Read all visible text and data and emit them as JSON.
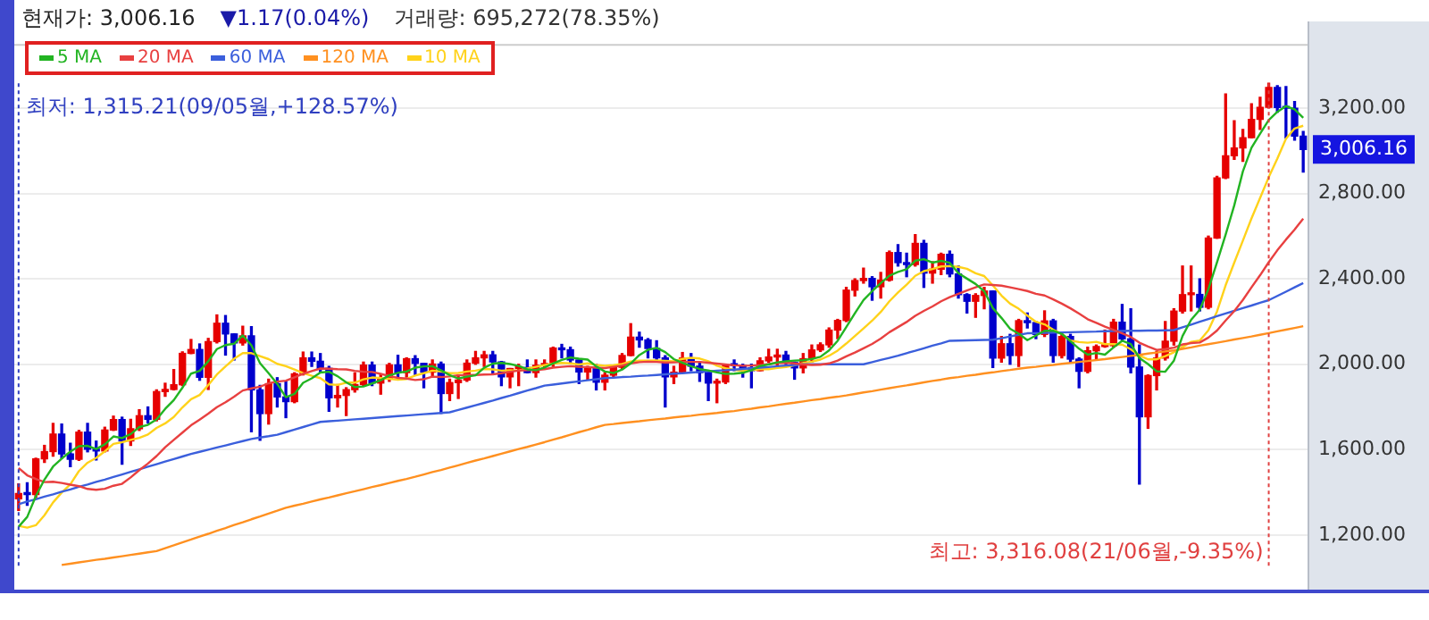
{
  "chart_data": {
    "type": "candlestick",
    "categories": [
      null,
      null,
      null,
      null,
      null,
      null,
      null,
      null,
      null,
      null,
      null,
      null,
      null,
      null,
      null,
      null,
      null,
      null,
      null,
      null,
      null,
      null,
      null,
      null,
      null,
      null,
      null,
      null,
      null,
      null,
      null,
      null,
      null,
      null,
      null,
      null,
      null,
      null,
      null,
      null,
      null,
      null,
      null,
      null,
      null,
      null,
      null,
      null,
      null,
      null,
      null,
      null,
      null,
      null,
      null,
      null,
      null,
      null,
      null,
      null,
      null,
      null,
      null,
      null,
      null,
      null,
      null,
      null,
      null,
      null,
      null,
      null,
      null,
      null,
      null,
      null,
      null,
      null,
      null,
      null,
      null,
      null,
      null,
      null,
      null,
      null,
      null,
      null,
      null,
      null,
      null,
      null,
      null,
      null,
      null,
      null,
      null,
      null,
      null,
      null,
      null,
      null,
      null,
      null,
      null,
      null,
      null,
      null,
      null,
      null,
      null,
      null,
      null,
      null,
      null,
      null,
      null,
      null,
      null,
      null,
      null,
      null,
      null,
      null,
      null,
      null,
      null,
      null,
      null,
      null,
      null,
      null,
      null,
      null,
      null,
      null,
      null,
      null,
      null,
      null,
      null,
      null,
      null,
      null,
      null,
      null,
      null,
      null,
      null,
      null
    ],
    "ohlc": [
      [
        1370,
        1440,
        1315.21,
        1395
      ],
      [
        1395,
        1445,
        1340,
        1390
      ],
      [
        1390,
        1560,
        1375,
        1557
      ],
      [
        1557,
        1620,
        1540,
        1591
      ],
      [
        1591,
        1723,
        1570,
        1673
      ],
      [
        1673,
        1720,
        1560,
        1580
      ],
      [
        1580,
        1630,
        1520,
        1555
      ],
      [
        1555,
        1690,
        1550,
        1682
      ],
      [
        1682,
        1723,
        1590,
        1602
      ],
      [
        1602,
        1640,
        1552,
        1594
      ],
      [
        1594,
        1705,
        1590,
        1692
      ],
      [
        1692,
        1757,
        1690,
        1741
      ],
      [
        1741,
        1752,
        1532,
        1641
      ],
      [
        1641,
        1742,
        1620,
        1698
      ],
      [
        1698,
        1787,
        1690,
        1759
      ],
      [
        1759,
        1800,
        1725,
        1742
      ],
      [
        1742,
        1880,
        1735,
        1872
      ],
      [
        1872,
        1911,
        1850,
        1882
      ],
      [
        1882,
        1975,
        1880,
        1904
      ],
      [
        1904,
        2058,
        1900,
        2051
      ],
      [
        2051,
        2116,
        2050,
        2069
      ],
      [
        2069,
        2095,
        1925,
        1939
      ],
      [
        1939,
        2121,
        1882,
        2106
      ],
      [
        2106,
        2231,
        2100,
        2192
      ],
      [
        2192,
        2228,
        2043,
        2142
      ],
      [
        2142,
        2142,
        2020,
        2100
      ],
      [
        2100,
        2178,
        2090,
        2133
      ],
      [
        2133,
        2176,
        1684,
        1880
      ],
      [
        1880,
        1901,
        1644,
        1769
      ],
      [
        1769,
        1930,
        1720,
        1909
      ],
      [
        1909,
        1937,
        1800,
        1847
      ],
      [
        1847,
        1920,
        1750,
        1825
      ],
      [
        1825,
        1960,
        1820,
        1955
      ],
      [
        1955,
        2057,
        1950,
        2030
      ],
      [
        2030,
        2057,
        1990,
        2014
      ],
      [
        2014,
        2050,
        1960,
        1981
      ],
      [
        1981,
        1990,
        1780,
        1843
      ],
      [
        1843,
        1905,
        1800,
        1854
      ],
      [
        1854,
        1890,
        1760,
        1881
      ],
      [
        1881,
        1960,
        1870,
        1905
      ],
      [
        1905,
        2010,
        1900,
        1996
      ],
      [
        1996,
        2010,
        1900,
        1912
      ],
      [
        1912,
        1950,
        1860,
        1932
      ],
      [
        1932,
        2004,
        1920,
        1997
      ],
      [
        1997,
        2042,
        1940,
        1961
      ],
      [
        1961,
        2030,
        1940,
        2026
      ],
      [
        2026,
        2040,
        1950,
        2004
      ],
      [
        2004,
        2004,
        1890,
        1963
      ],
      [
        1963,
        2020,
        1940,
        2001
      ],
      [
        2001,
        2010,
        1770,
        1863
      ],
      [
        1863,
        1930,
        1830,
        1914
      ],
      [
        1914,
        1950,
        1840,
        1926
      ],
      [
        1926,
        2020,
        1920,
        2005
      ],
      [
        2005,
        2060,
        2000,
        2030
      ],
      [
        2030,
        2060,
        1990,
        2044
      ],
      [
        2044,
        2060,
        1960,
        2011
      ],
      [
        2011,
        2013,
        1900,
        1941
      ],
      [
        1941,
        1980,
        1890,
        1980
      ],
      [
        1980,
        2000,
        1900,
        1985
      ],
      [
        1985,
        2020,
        1960,
        1961
      ],
      [
        1961,
        2020,
        1940,
        1995
      ],
      [
        1995,
        2020,
        1980,
        2002
      ],
      [
        2002,
        2080,
        1990,
        2076
      ],
      [
        2076,
        2093,
        2030,
        2068
      ],
      [
        2068,
        2080,
        2010,
        2020
      ],
      [
        2020,
        2020,
        1910,
        1964
      ],
      [
        1964,
        1990,
        1930,
        1981
      ],
      [
        1981,
        2000,
        1880,
        1916
      ],
      [
        1916,
        1960,
        1880,
        1949
      ],
      [
        1949,
        1990,
        1940,
        1986
      ],
      [
        1986,
        2050,
        1980,
        2041
      ],
      [
        2041,
        2190,
        2040,
        2127
      ],
      [
        2127,
        2150,
        2080,
        2114
      ],
      [
        2114,
        2120,
        2030,
        2074
      ],
      [
        2074,
        2110,
        2010,
        2030
      ],
      [
        2030,
        2040,
        1800,
        1941
      ],
      [
        1941,
        1990,
        1910,
        1963
      ],
      [
        1963,
        2055,
        1960,
        2029
      ],
      [
        2029,
        2050,
        1970,
        1991
      ],
      [
        1991,
        2010,
        1920,
        1961
      ],
      [
        1961,
        1970,
        1830,
        1912
      ],
      [
        1912,
        1930,
        1820,
        1917
      ],
      [
        1917,
        2000,
        1910,
        1996
      ],
      [
        1996,
        2020,
        1970,
        1994
      ],
      [
        1994,
        2000,
        1940,
        1983
      ],
      [
        1983,
        2000,
        1890,
        1970
      ],
      [
        1970,
        2030,
        1970,
        2016
      ],
      [
        2016,
        2070,
        2010,
        2034
      ],
      [
        2034,
        2070,
        1990,
        2043
      ],
      [
        2043,
        2060,
        2000,
        2008
      ],
      [
        2008,
        2010,
        1930,
        1983
      ],
      [
        1983,
        2050,
        1960,
        2026
      ],
      [
        2026,
        2090,
        2010,
        2067
      ],
      [
        2067,
        2100,
        2060,
        2091
      ],
      [
        2091,
        2170,
        2080,
        2160
      ],
      [
        2160,
        2210,
        2120,
        2205
      ],
      [
        2205,
        2360,
        2200,
        2347
      ],
      [
        2347,
        2400,
        2320,
        2392
      ],
      [
        2392,
        2450,
        2380,
        2402
      ],
      [
        2402,
        2410,
        2300,
        2363
      ],
      [
        2363,
        2430,
        2310,
        2394
      ],
      [
        2394,
        2530,
        2390,
        2523
      ],
      [
        2523,
        2560,
        2460,
        2476
      ],
      [
        2476,
        2520,
        2410,
        2467
      ],
      [
        2467,
        2607,
        2460,
        2566
      ],
      [
        2566,
        2580,
        2360,
        2427
      ],
      [
        2427,
        2480,
        2380,
        2445
      ],
      [
        2445,
        2520,
        2420,
        2515
      ],
      [
        2515,
        2530,
        2410,
        2423
      ],
      [
        2423,
        2460,
        2310,
        2326
      ],
      [
        2326,
        2330,
        2240,
        2295
      ],
      [
        2295,
        2330,
        2220,
        2322
      ],
      [
        2322,
        2360,
        2260,
        2343
      ],
      [
        2343,
        2343,
        1985,
        2029
      ],
      [
        2029,
        2130,
        2010,
        2096
      ],
      [
        2096,
        2140,
        2000,
        2041
      ],
      [
        2041,
        2210,
        1990,
        2204
      ],
      [
        2204,
        2240,
        2170,
        2195
      ],
      [
        2195,
        2200,
        2120,
        2140
      ],
      [
        2140,
        2250,
        2130,
        2203
      ],
      [
        2203,
        2210,
        2010,
        2041
      ],
      [
        2041,
        2150,
        2030,
        2130
      ],
      [
        2130,
        2140,
        2010,
        2024
      ],
      [
        2024,
        2030,
        1890,
        1967
      ],
      [
        1967,
        2080,
        1960,
        2063
      ],
      [
        2063,
        2090,
        2020,
        2083
      ],
      [
        2083,
        2160,
        2080,
        2087
      ],
      [
        2087,
        2210,
        2080,
        2197
      ],
      [
        2197,
        2280,
        2110,
        2119
      ],
      [
        2119,
        2260,
        1960,
        1987
      ],
      [
        1987,
        2090,
        1439,
        1754
      ],
      [
        1754,
        1950,
        1700,
        1947
      ],
      [
        1947,
        2060,
        1880,
        2029
      ],
      [
        2029,
        2200,
        2020,
        2108
      ],
      [
        2108,
        2260,
        2090,
        2249
      ],
      [
        2249,
        2460,
        2240,
        2326
      ],
      [
        2326,
        2460,
        2250,
        2327
      ],
      [
        2327,
        2400,
        2250,
        2267
      ],
      [
        2267,
        2600,
        2260,
        2591
      ],
      [
        2591,
        2880,
        2590,
        2873
      ],
      [
        2873,
        3266,
        2870,
        2976
      ],
      [
        2976,
        3140,
        2960,
        3013
      ],
      [
        3013,
        3100,
        2950,
        3061
      ],
      [
        3061,
        3220,
        3060,
        3147
      ],
      [
        3147,
        3250,
        3100,
        3203
      ],
      [
        3203,
        3316.08,
        3200,
        3296
      ],
      [
        3296,
        3305,
        3180,
        3202
      ],
      [
        3202,
        3300,
        3060,
        3199
      ],
      [
        3199,
        3230,
        3050,
        3068
      ],
      [
        3068,
        3090,
        2900,
        3006.16
      ]
    ],
    "colors": [
      "#e60000",
      "#0000cc",
      "#e60000",
      "#e60000",
      "#e60000",
      "#0000cc",
      "#0000cc",
      "#e60000",
      "#0000cc",
      "#0000cc",
      "#e60000",
      "#e60000",
      "#0000cc",
      "#e60000",
      "#e60000",
      "#0000cc",
      "#e60000",
      "#e60000",
      "#e60000",
      "#e60000",
      "#e60000",
      "#0000cc",
      "#e60000",
      "#e60000",
      "#0000cc",
      "#0000cc",
      "#e60000",
      "#0000cc",
      "#0000cc",
      "#e60000",
      "#0000cc",
      "#0000cc",
      "#e60000",
      "#e60000",
      "#0000cc",
      "#0000cc",
      "#0000cc",
      "#e60000",
      "#e60000",
      "#e60000",
      "#e60000",
      "#0000cc",
      "#e60000",
      "#e60000",
      "#0000cc",
      "#e60000",
      "#0000cc",
      "#0000cc",
      "#e60000",
      "#0000cc",
      "#e60000",
      "#e60000",
      "#e60000",
      "#e60000",
      "#e60000",
      "#0000cc",
      "#0000cc",
      "#e60000",
      "#e60000",
      "#0000cc",
      "#e60000",
      "#e60000",
      "#e60000",
      "#0000cc",
      "#0000cc",
      "#0000cc",
      "#e60000",
      "#0000cc",
      "#e60000",
      "#e60000",
      "#e60000",
      "#e60000",
      "#0000cc",
      "#0000cc",
      "#0000cc",
      "#0000cc",
      "#e60000",
      "#e60000",
      "#0000cc",
      "#0000cc",
      "#0000cc",
      "#e60000",
      "#e60000",
      "#0000cc",
      "#0000cc",
      "#0000cc",
      "#e60000",
      "#e60000",
      "#e60000",
      "#0000cc",
      "#0000cc",
      "#e60000",
      "#e60000",
      "#e60000",
      "#e60000",
      "#e60000",
      "#e60000",
      "#e60000",
      "#e60000",
      "#0000cc",
      "#e60000",
      "#e60000",
      "#0000cc",
      "#0000cc",
      "#e60000",
      "#0000cc",
      "#e60000",
      "#e60000",
      "#0000cc",
      "#0000cc",
      "#0000cc",
      "#e60000",
      "#e60000",
      "#0000cc",
      "#e60000",
      "#0000cc",
      "#e60000",
      "#0000cc",
      "#0000cc",
      "#e60000",
      "#0000cc",
      "#e60000",
      "#0000cc",
      "#0000cc",
      "#e60000",
      "#e60000",
      "#e60000",
      "#e60000",
      "#0000cc",
      "#0000cc",
      "#0000cc",
      "#e60000",
      "#e60000",
      "#e60000",
      "#e60000",
      "#e60000",
      "#e60000",
      "#0000cc",
      "#e60000",
      "#e60000",
      "#e60000",
      "#e60000",
      "#e60000",
      "#e60000",
      "#e60000",
      "#e60000",
      "#0000cc",
      "#0000cc",
      "#0000cc",
      "#0000cc"
    ],
    "series": [
      {
        "name": "5 MA",
        "type": "line",
        "color": "#22b422",
        "values": [
          1239,
          1285,
          1383,
          1460,
          1521,
          1558,
          1591,
          1616,
          1618,
          1603,
          1625,
          1662,
          1654,
          1673,
          1706,
          1716,
          1742,
          1791,
          1832,
          1890,
          1956,
          1969,
          2014,
          2071,
          2090,
          2096,
          2135,
          2089,
          2005,
          1958,
          1908,
          1846,
          1861,
          1913,
          1934,
          1961,
          1965,
          1944,
          1915,
          1893,
          1896,
          1910,
          1925,
          1948,
          1960,
          1966,
          1984,
          1990,
          1991,
          1971,
          1949,
          1933,
          1942,
          1948,
          1984,
          2003,
          2006,
          2001,
          1992,
          1976,
          1972,
          1985,
          2004,
          2020,
          2032,
          2026,
          2022,
          1990,
          1966,
          1959,
          1975,
          2004,
          2043,
          2068,
          2077,
          2057,
          2024,
          2007,
          1991,
          1977,
          1971,
          1962,
          1955,
          1956,
          1960,
          1972,
          1992,
          1999,
          2009,
          2014,
          2017,
          2019,
          2025,
          2035,
          2065,
          2110,
          2174,
          2239,
          2301,
          2342,
          2380,
          2415,
          2432,
          2445,
          2485,
          2492,
          2476,
          2484,
          2475,
          2427,
          2401,
          2376,
          2342,
          2263,
          2217,
          2166,
          2143,
          2113,
          2135,
          2157,
          2157,
          2142,
          2108,
          2073,
          2045,
          2053,
          2045,
          2079,
          2110,
          2095,
          2029,
          2001,
          1967,
          1965,
          2017,
          2132,
          2208,
          2255,
          2352,
          2477,
          2607,
          2744,
          2903,
          3014,
          3080,
          3144,
          3182,
          3209,
          3194,
          3154
        ]
      },
      {
        "name": "20 MA",
        "type": "line",
        "color": "#e84040",
        "values": [
          1514,
          1480,
          1463,
          1448,
          1450,
          1444,
          1436,
          1429,
          1416,
          1412,
          1417,
          1431,
          1440,
          1470,
          1504,
          1535,
          1570,
          1611,
          1646,
          1680,
          1714,
          1741,
          1769,
          1799,
          1822,
          1848,
          1877,
          1887,
          1895,
          1911,
          1919,
          1923,
          1939,
          1955,
          1968,
          1980,
          1979,
          1977,
          1976,
          1969,
          1965,
          1964,
          1955,
          1945,
          1936,
          1933,
          1926,
          1930,
          1942,
          1940,
          1943,
          1948,
          1950,
          1950,
          1952,
          1953,
          1958,
          1965,
          1970,
          1973,
          1973,
          1977,
          1984,
          1988,
          1991,
          1988,
          1987,
          1984,
          1982,
          1988,
          1994,
          2004,
          2010,
          2012,
          2011,
          2008,
          2009,
          2011,
          2011,
          2011,
          2007,
          2003,
          1999,
          1995,
          1993,
          1994,
          1996,
          2001,
          2006,
          2007,
          2004,
          1999,
          1997,
          1998,
          2004,
          2017,
          2037,
          2055,
          2075,
          2095,
          2120,
          2150,
          2174,
          2198,
          2227,
          2250,
          2271,
          2295,
          2314,
          2330,
          2346,
          2360,
          2374,
          2371,
          2368,
          2360,
          2352,
          2343,
          2330,
          2322,
          2304,
          2284,
          2262,
          2237,
          2211,
          2194,
          2176,
          2160,
          2145,
          2128,
          2101,
          2083,
          2067,
          2071,
          2078,
          2093,
          2099,
          2102,
          2125,
          2158,
          2205,
          2249,
          2301,
          2360,
          2417,
          2478,
          2534,
          2584,
          2631,
          2682
        ]
      },
      {
        "name": "60 MA",
        "type": "line",
        "color": "#3b5fdc",
        "values": [
          1345,
          1357,
          1368,
          1380,
          1391,
          1403,
          1414,
          1426,
          1437,
          1449,
          1460,
          1472,
          1484,
          1496,
          1508,
          1520,
          1532,
          1544,
          1556,
          1568,
          1580,
          1590,
          1600,
          1610,
          1620,
          1630,
          1640,
          1650,
          1657,
          1663,
          1670,
          1682,
          1694,
          1706,
          1718,
          1730,
          1733,
          1736,
          1739,
          1742,
          1745,
          1748,
          1751,
          1754,
          1757,
          1760,
          1763,
          1766,
          1769,
          1772,
          1775,
          1786,
          1797,
          1808,
          1819,
          1830,
          1842,
          1853,
          1865,
          1877,
          1888,
          1900,
          1905,
          1910,
          1915,
          1920,
          1925,
          1930,
          1935,
          1937,
          1940,
          1942,
          1945,
          1947,
          1950,
          1953,
          1956,
          1958,
          1961,
          1964,
          1967,
          1970,
          1972,
          1975,
          1978,
          1981,
          1984,
          1987,
          1991,
          1994,
          1997,
          2000,
          2000,
          2000,
          2000,
          2000,
          2000,
          2000,
          2000,
          2010,
          2020,
          2030,
          2040,
          2052,
          2063,
          2075,
          2087,
          2098,
          2110,
          2111,
          2112,
          2113,
          2114,
          2115,
          2122,
          2130,
          2138,
          2145,
          2146,
          2147,
          2148,
          2149,
          2150,
          2151,
          2152,
          2153,
          2155,
          2156,
          2156,
          2157,
          2157,
          2158,
          2158,
          2159,
          2160,
          2173,
          2186,
          2199,
          2212,
          2225,
          2238,
          2250,
          2263,
          2275,
          2288,
          2300,
          2320,
          2340,
          2360,
          2380
        ]
      },
      {
        "name": "120 MA",
        "type": "line",
        "color": "#ff9020",
        "values": [
          null,
          null,
          null,
          null,
          null,
          1060,
          1066,
          1072,
          1078,
          1084,
          1089,
          1095,
          1101,
          1107,
          1113,
          1119,
          1125,
          1139,
          1152,
          1166,
          1179,
          1193,
          1206,
          1220,
          1233,
          1247,
          1260,
          1274,
          1287,
          1301,
          1314,
          1328,
          1338,
          1347,
          1357,
          1367,
          1376,
          1386,
          1396,
          1405,
          1415,
          1425,
          1434,
          1444,
          1454,
          1463,
          1473,
          1484,
          1495,
          1505,
          1516,
          1527,
          1538,
          1549,
          1559,
          1570,
          1581,
          1592,
          1603,
          1613,
          1624,
          1635,
          1647,
          1658,
          1670,
          1682,
          1693,
          1705,
          1716,
          1720,
          1725,
          1729,
          1733,
          1738,
          1742,
          1746,
          1751,
          1755,
          1759,
          1764,
          1768,
          1772,
          1777,
          1781,
          1787,
          1792,
          1798,
          1803,
          1809,
          1815,
          1820,
          1826,
          1832,
          1837,
          1843,
          1848,
          1854,
          1861,
          1868,
          1874,
          1881,
          1888,
          1895,
          1901,
          1908,
          1915,
          1922,
          1928,
          1935,
          1940,
          1946,
          1951,
          1957,
          1962,
          1968,
          1973,
          1979,
          1984,
          1988,
          1993,
          1997,
          2002,
          2006,
          2011,
          2015,
          2020,
          2024,
          2029,
          2034,
          2039,
          2044,
          2050,
          2055,
          2060,
          2065,
          2072,
          2079,
          2087,
          2094,
          2101,
          2108,
          2116,
          2123,
          2130,
          2138,
          2146,
          2154,
          2162,
          2170,
          2178
        ]
      },
      {
        "name": "10 MA",
        "type": "line",
        "color": "#ffd21a",
        "values": [
          1243,
          1235,
          1246,
          1293,
          1353,
          1399,
          1438,
          1500,
          1539,
          1562,
          1592,
          1627,
          1635,
          1646,
          1655,
          1671,
          1702,
          1723,
          1753,
          1798,
          1836,
          1856,
          1903,
          1952,
          1990,
          2026,
          2052,
          2052,
          2038,
          2024,
          2002,
          1991,
          1975,
          1959,
          1946,
          1935,
          1906,
          1903,
          1914,
          1914,
          1929,
          1938,
          1935,
          1932,
          1927,
          1931,
          1947,
          1958,
          1970,
          1966,
          1958,
          1959,
          1966,
          1970,
          1978,
          1976,
          1970,
          1972,
          1970,
          1980,
          1988,
          1996,
          2003,
          2006,
          2004,
          1999,
          2004,
          1997,
          1993,
          1996,
          2001,
          2013,
          2017,
          2017,
          2018,
          2016,
          2014,
          2025,
          2030,
          2027,
          2014,
          1993,
          1981,
          1974,
          1969,
          1972,
          1977,
          1977,
          1983,
          1987,
          1995,
          2006,
          2012,
          2022,
          2040,
          2064,
          2097,
          2132,
          2168,
          2204,
          2245,
          2295,
          2336,
          2373,
          2414,
          2436,
          2446,
          2458,
          2460,
          2456,
          2447,
          2426,
          2413,
          2369,
          2322,
          2284,
          2260,
          2228,
          2199,
          2187,
          2162,
          2143,
          2111,
          2104,
          2101,
          2105,
          2094,
          2094,
          2092,
          2070,
          2041,
          2023,
          2023,
          2038,
          2056,
          2081,
          2105,
          2111,
          2159,
          2247,
          2370,
          2476,
          2579,
          2683,
          2779,
          2876,
          2963,
          3056,
          3104,
          3117
        ]
      }
    ],
    "ylim": [
      1050,
      3500
    ],
    "yticks": [
      {
        "value": 1200,
        "label": "1,200.00"
      },
      {
        "value": 1600,
        "label": "1,600.00"
      },
      {
        "value": 2000,
        "label": "2,000.00"
      },
      {
        "value": 2400,
        "label": "2,400.00"
      },
      {
        "value": 2800,
        "label": "2,800.00"
      },
      {
        "value": 3200,
        "label": "3,200.00"
      }
    ],
    "grid": "y",
    "legend": "top left",
    "tick_labels": "y",
    "annotations": [
      "현재가: 3,006.16",
      "▼1.17(0.04%)",
      "거래량: 695,272(78.35%)",
      "최저: 1,315.21(09/05월,+128.57%)",
      "최고: 3,316.08(21/06월,-9.35%)",
      "3,006.16"
    ]
  }
}
